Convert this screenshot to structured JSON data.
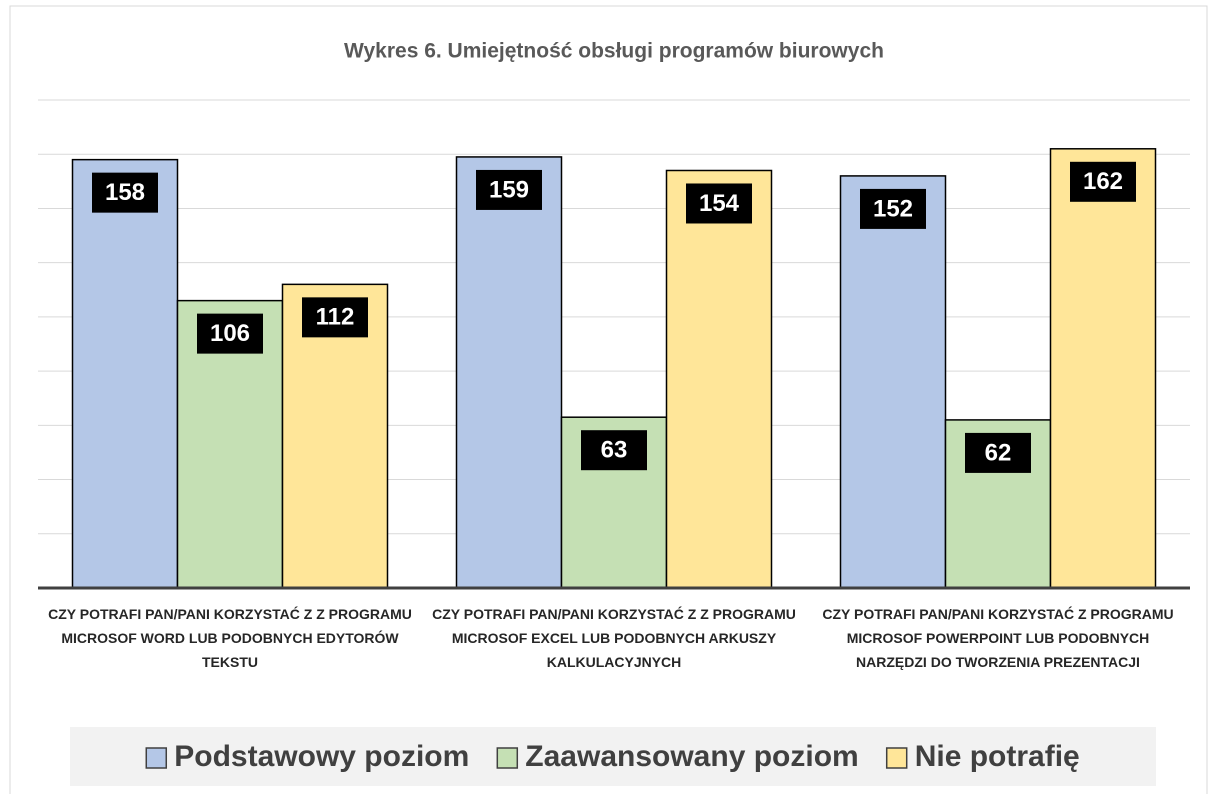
{
  "chart_data": {
    "type": "bar",
    "title": "Wykres 6. Umiejętność obsługi programów biurowych",
    "categories": [
      "CZY POTRAFI PAN/PANI KORZYSTAĆ Z Z PROGRAMU MICROSOF WORD LUB PODOBNYCH EDYTORÓW TEKSTU",
      "CZY POTRAFI PAN/PANI KORZYSTAĆ Z Z PROGRAMU MICROSOF EXCEL LUB PODOBNYCH ARKUSZY KALKULACYJNYCH",
      "CZY POTRAFI PAN/PANI KORZYSTAĆ Z PROGRAMU MICROSOF POWERPOINT LUB PODOBNYCH NARZĘDZI DO TWORZENIA PREZENTACJI"
    ],
    "series": [
      {
        "name": "Podstawowy poziom",
        "color": "#b4c7e7",
        "values": [
          158,
          159,
          152
        ]
      },
      {
        "name": "Zaawansowany poziom",
        "color": "#c5e0b4",
        "values": [
          106,
          63,
          62
        ]
      },
      {
        "name": "Nie potrafię",
        "color": "#ffe699",
        "values": [
          112,
          154,
          162
        ]
      }
    ],
    "ylim": [
      0,
      180
    ],
    "yticks": [
      0,
      20,
      40,
      60,
      80,
      100,
      120,
      140,
      160,
      180
    ],
    "grid": true
  }
}
